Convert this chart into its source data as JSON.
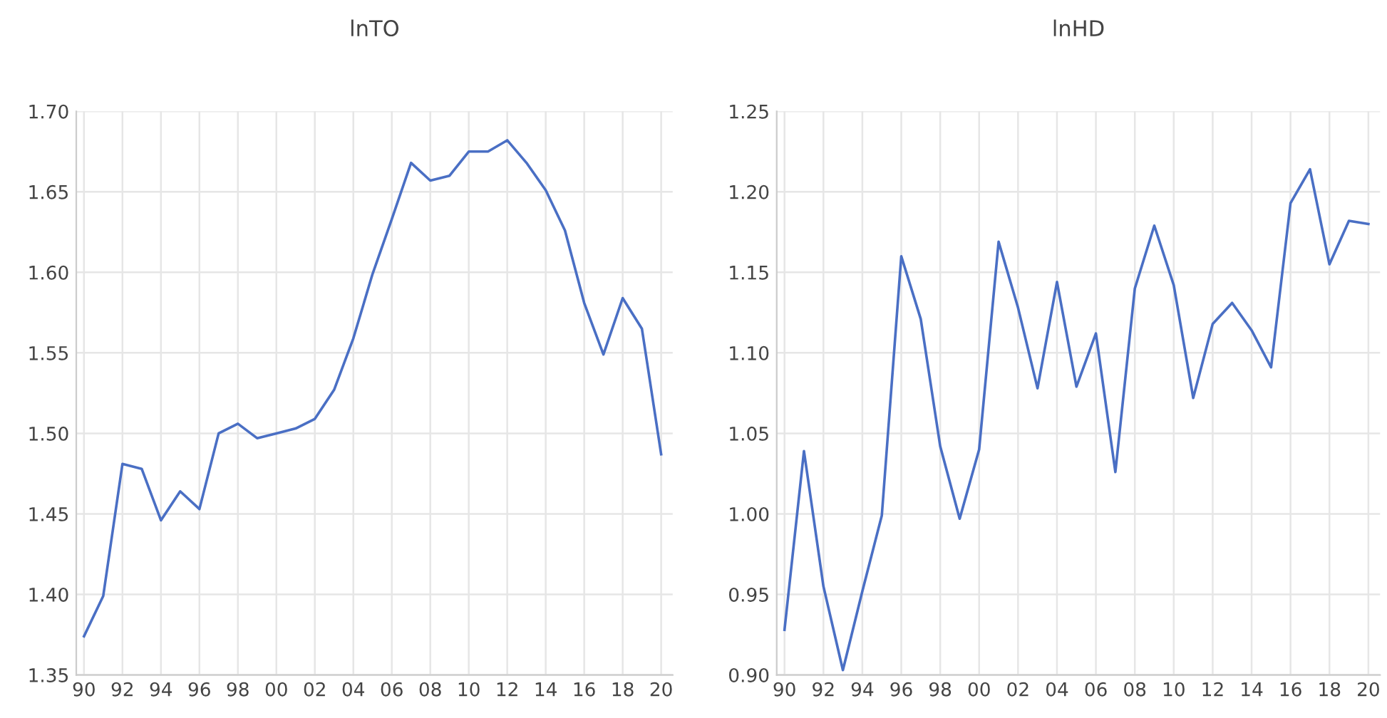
{
  "chart_data": [
    {
      "type": "line",
      "title": "lnTO",
      "x": [
        1990,
        1991,
        1992,
        1993,
        1994,
        1995,
        1996,
        1997,
        1998,
        1999,
        2000,
        2001,
        2002,
        2003,
        2004,
        2005,
        2006,
        2007,
        2008,
        2009,
        2010,
        2011,
        2012,
        2013,
        2014,
        2015,
        2016,
        2017,
        2018,
        2019,
        2020
      ],
      "series": [
        {
          "color": "#4a6fc4",
          "values": [
            1.374,
            1.399,
            1.481,
            1.478,
            1.446,
            1.464,
            1.453,
            1.5,
            1.506,
            1.497,
            1.5,
            1.503,
            1.509,
            1.527,
            1.559,
            1.599,
            1.633,
            1.668,
            1.657,
            1.66,
            1.675,
            1.675,
            1.682,
            1.668,
            1.651,
            1.626,
            1.581,
            1.549,
            1.584,
            1.565,
            1.487
          ]
        }
      ],
      "xlim": [
        1989.6,
        2020.6
      ],
      "xticks": [
        {
          "value": 1990,
          "label": "90"
        },
        {
          "value": 1992,
          "label": "92"
        },
        {
          "value": 1994,
          "label": "94"
        },
        {
          "value": 1996,
          "label": "96"
        },
        {
          "value": 1998,
          "label": "98"
        },
        {
          "value": 2000,
          "label": "00"
        },
        {
          "value": 2002,
          "label": "02"
        },
        {
          "value": 2004,
          "label": "04"
        },
        {
          "value": 2006,
          "label": "06"
        },
        {
          "value": 2008,
          "label": "08"
        },
        {
          "value": 2010,
          "label": "10"
        },
        {
          "value": 2012,
          "label": "12"
        },
        {
          "value": 2014,
          "label": "14"
        },
        {
          "value": 2016,
          "label": "16"
        },
        {
          "value": 2018,
          "label": "18"
        },
        {
          "value": 2020,
          "label": "20"
        }
      ],
      "ylim": [
        1.35,
        1.7
      ],
      "yticks": [
        {
          "value": 1.35,
          "label": "1.35"
        },
        {
          "value": 1.4,
          "label": "1.40"
        },
        {
          "value": 1.45,
          "label": "1.45"
        },
        {
          "value": 1.5,
          "label": "1.50"
        },
        {
          "value": 1.55,
          "label": "1.55"
        },
        {
          "value": 1.6,
          "label": "1.60"
        },
        {
          "value": 1.65,
          "label": "1.65"
        },
        {
          "value": 1.7,
          "label": "1.70"
        }
      ],
      "grid": true
    },
    {
      "type": "line",
      "title": "lnHD",
      "x": [
        1990,
        1991,
        1992,
        1993,
        1994,
        1995,
        1996,
        1997,
        1998,
        1999,
        2000,
        2001,
        2002,
        2003,
        2004,
        2005,
        2006,
        2007,
        2008,
        2009,
        2010,
        2011,
        2012,
        2013,
        2014,
        2015,
        2016,
        2017,
        2018,
        2019,
        2020
      ],
      "series": [
        {
          "color": "#4a6fc4",
          "values": [
            0.928,
            1.039,
            0.955,
            0.903,
            0.952,
            0.999,
            1.16,
            1.121,
            1.042,
            0.997,
            1.04,
            1.169,
            1.128,
            1.078,
            1.144,
            1.079,
            1.112,
            1.026,
            1.14,
            1.179,
            1.142,
            1.072,
            1.118,
            1.131,
            1.114,
            1.091,
            1.193,
            1.214,
            1.155,
            1.182,
            1.18
          ]
        }
      ],
      "xlim": [
        1989.6,
        2020.6
      ],
      "xticks": [
        {
          "value": 1990,
          "label": "90"
        },
        {
          "value": 1992,
          "label": "92"
        },
        {
          "value": 1994,
          "label": "94"
        },
        {
          "value": 1996,
          "label": "96"
        },
        {
          "value": 1998,
          "label": "98"
        },
        {
          "value": 2000,
          "label": "00"
        },
        {
          "value": 2002,
          "label": "02"
        },
        {
          "value": 2004,
          "label": "04"
        },
        {
          "value": 2006,
          "label": "06"
        },
        {
          "value": 2008,
          "label": "08"
        },
        {
          "value": 2010,
          "label": "10"
        },
        {
          "value": 2012,
          "label": "12"
        },
        {
          "value": 2014,
          "label": "14"
        },
        {
          "value": 2016,
          "label": "16"
        },
        {
          "value": 2018,
          "label": "18"
        },
        {
          "value": 2020,
          "label": "20"
        }
      ],
      "ylim": [
        0.9,
        1.25
      ],
      "yticks": [
        {
          "value": 0.9,
          "label": "0.90"
        },
        {
          "value": 0.95,
          "label": "0.95"
        },
        {
          "value": 1.0,
          "label": "1.00"
        },
        {
          "value": 1.05,
          "label": "1.05"
        },
        {
          "value": 1.1,
          "label": "1.10"
        },
        {
          "value": 1.15,
          "label": "1.15"
        },
        {
          "value": 1.2,
          "label": "1.20"
        },
        {
          "value": 1.25,
          "label": "1.25"
        }
      ],
      "grid": true
    }
  ]
}
